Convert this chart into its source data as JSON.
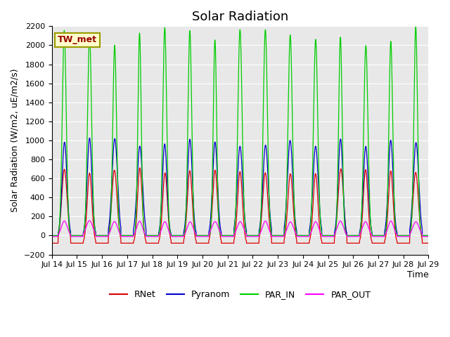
{
  "title": "Solar Radiation",
  "ylabel": "Solar Radiation (W/m2, uE/m2/s)",
  "xlabel": "Time",
  "ylim": [
    -200,
    2200
  ],
  "yticks": [
    -200,
    0,
    200,
    400,
    600,
    800,
    1000,
    1200,
    1400,
    1600,
    1800,
    2000,
    2200
  ],
  "num_days": 15,
  "points_per_day": 288,
  "colors": {
    "RNet": "#dd0000",
    "Pyranom": "#0000cc",
    "PAR_IN": "#00cc00",
    "PAR_OUT": "#ff00ff"
  },
  "peaks": {
    "RNet": 680,
    "Pyranom": 980,
    "PAR_IN": 2100,
    "PAR_OUT": 150
  },
  "night_values": {
    "RNet": -80,
    "Pyranom": 0,
    "PAR_IN": 0,
    "PAR_OUT": -10
  },
  "station_label": "TW_met",
  "station_label_color": "#990000",
  "station_box_facecolor": "#ffffcc",
  "station_box_edgecolor": "#999900",
  "background_color": "#e8e8e8",
  "xtick_labels": [
    "Jul 14",
    "Jul 15",
    "Jul 16",
    "Jul 17",
    "Jul 18",
    "Jul 19",
    "Jul 20",
    "Jul 21",
    "Jul 22",
    "Jul 23",
    "Jul 24",
    "Jul 25",
    "Jul 26",
    "Jul 27",
    "Jul 28",
    "Jul 29"
  ],
  "title_fontsize": 13,
  "axis_label_fontsize": 9,
  "tick_fontsize": 8,
  "linewidth": 0.9
}
